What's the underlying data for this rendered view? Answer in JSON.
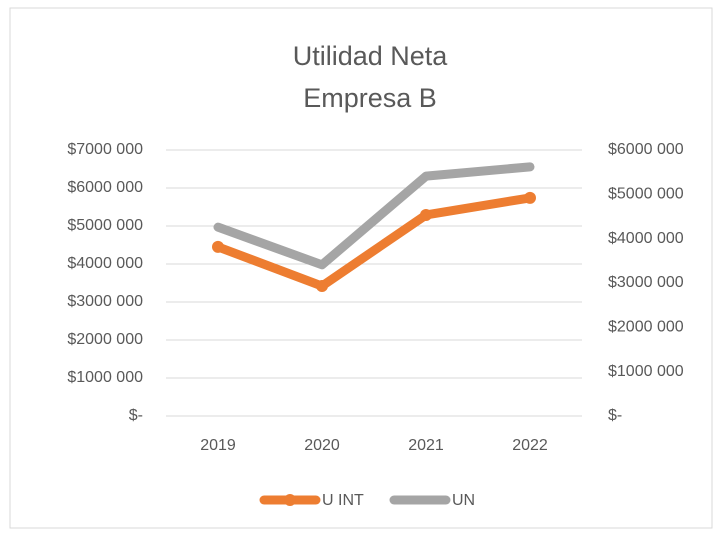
{
  "chart_data": {
    "type": "line",
    "title": [
      "Utilidad Neta",
      "Empresa B"
    ],
    "categories": [
      "2019",
      "2020",
      "2021",
      "2022"
    ],
    "series": [
      {
        "name": "U INT",
        "color": "#ed7d31",
        "values": [
          4450000,
          3420000,
          5290000,
          5740000
        ]
      },
      {
        "name": "UN",
        "color": "#a5a5a5",
        "axis": "y2",
        "values": [
          4260000,
          3410000,
          5410000,
          5620000
        ]
      }
    ],
    "ylim": [
      0,
      7000000
    ],
    "yticks": [
      {
        "value": 0,
        "label": "$-"
      },
      {
        "value": 1000000,
        "label": "$1000 000"
      },
      {
        "value": 2000000,
        "label": "$2000 000"
      },
      {
        "value": 3000000,
        "label": "$3000 000"
      },
      {
        "value": 4000000,
        "label": "$4000 000"
      },
      {
        "value": 5000000,
        "label": "$5000 000"
      },
      {
        "value": 6000000,
        "label": "$6000 000"
      },
      {
        "value": 7000000,
        "label": "$7000 000"
      }
    ],
    "y2lim": [
      0,
      6000000
    ],
    "y2ticks": [
      {
        "value": 0,
        "label": "$-"
      },
      {
        "value": 1000000,
        "label": "$1000 000"
      },
      {
        "value": 2000000,
        "label": "$2000 000"
      },
      {
        "value": 3000000,
        "label": "$3000 000"
      },
      {
        "value": 4000000,
        "label": "$4000 000"
      },
      {
        "value": 5000000,
        "label": "$5000 000"
      },
      {
        "value": 6000000,
        "label": "$6000 000"
      }
    ],
    "grid": true,
    "legend": "bottom"
  }
}
